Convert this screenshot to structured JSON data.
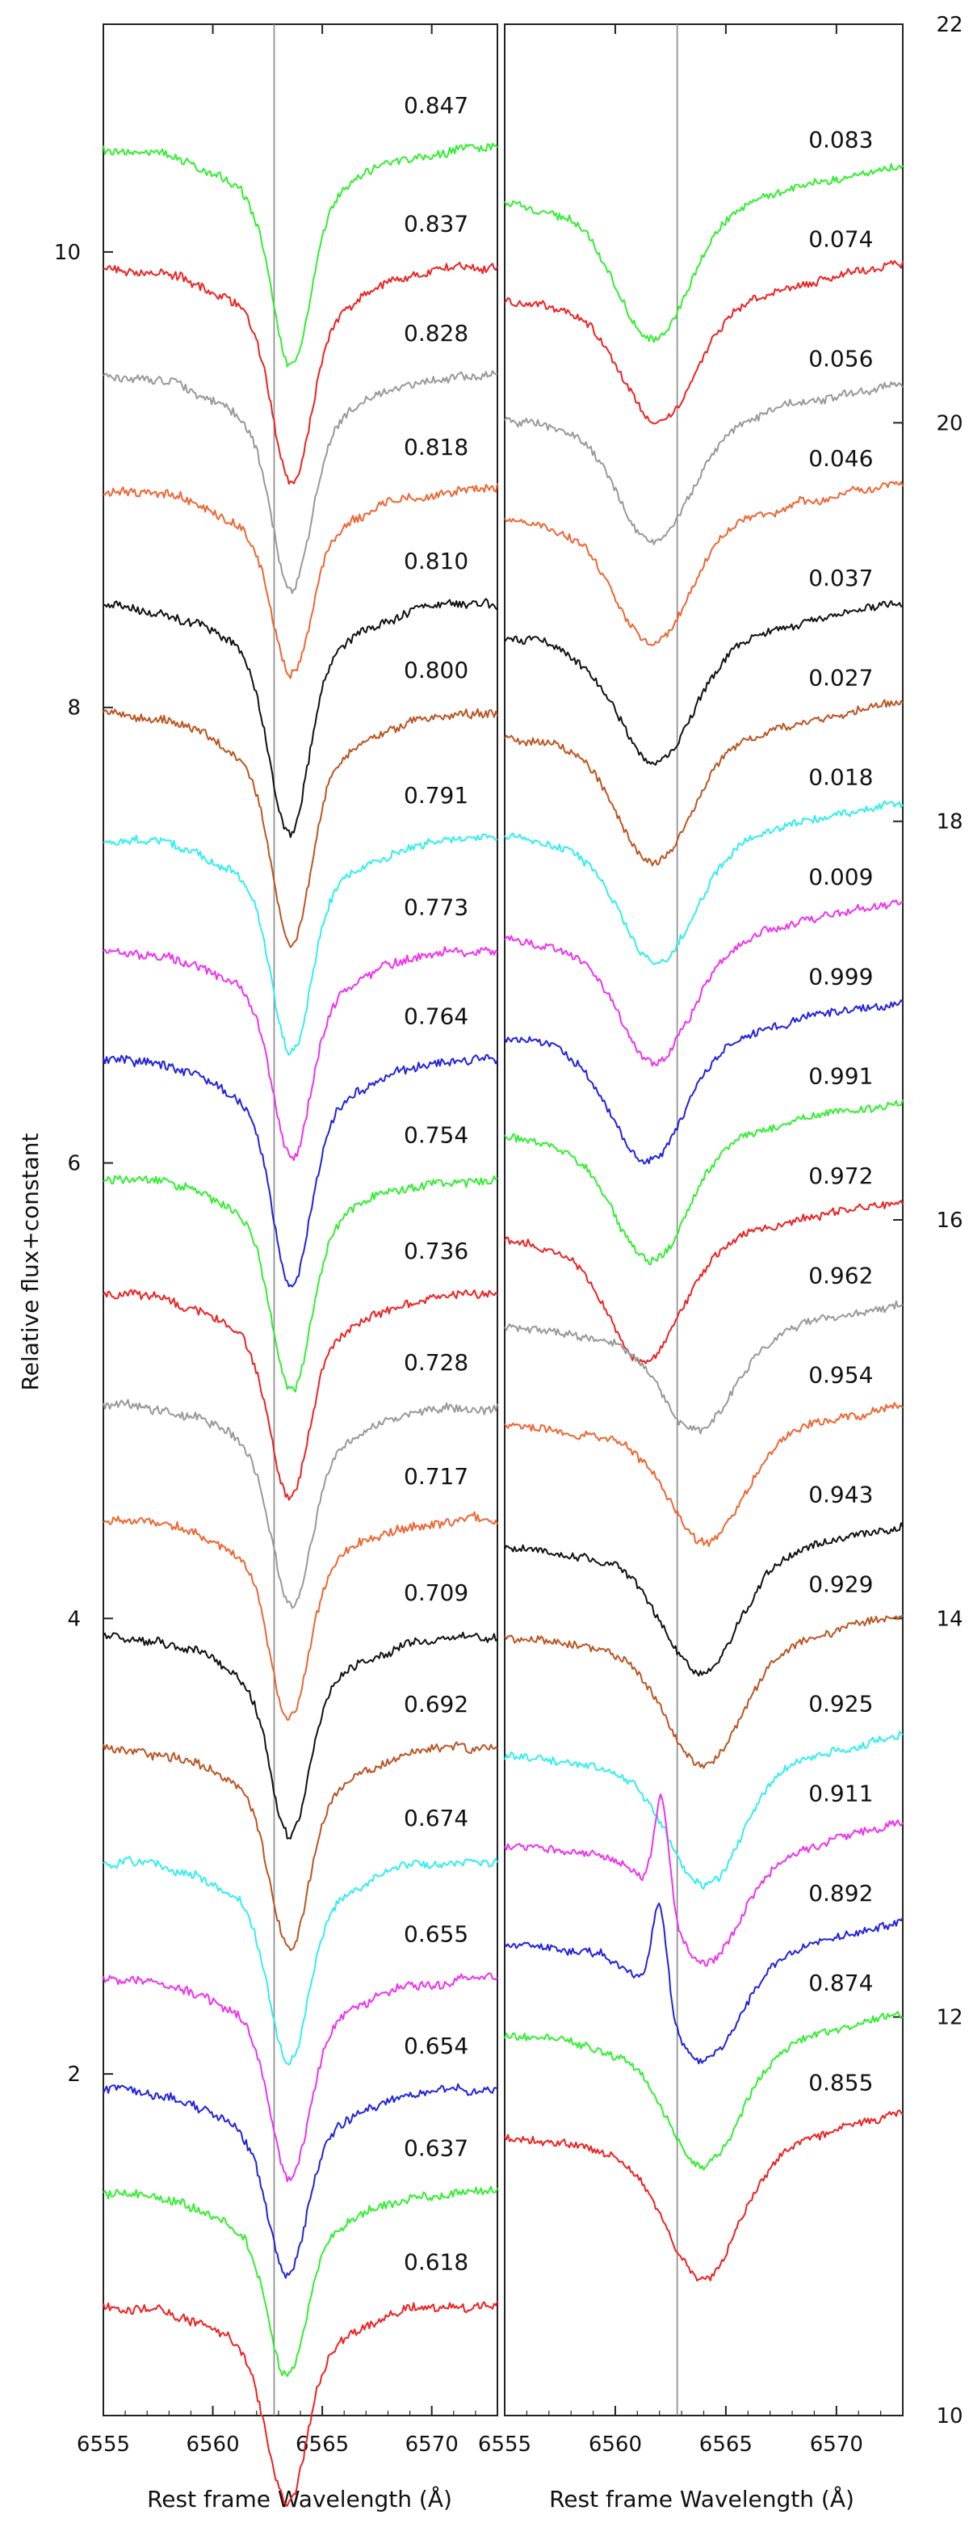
{
  "chart_data": [
    {
      "type": "line",
      "panel": "left",
      "xlabel": "Rest frame Wavelength (Å)",
      "ylabel": "Relative flux+constant",
      "xlim": [
        6555,
        6573
      ],
      "ylim": [
        0.5,
        11
      ],
      "xticks": [
        6555,
        6560,
        6565,
        6570
      ],
      "xtick_labels": [
        "6555",
        "6560",
        "6565",
        "6570"
      ],
      "yticks": [
        2,
        4,
        6,
        8,
        10
      ],
      "ytick_labels": [
        "2",
        "4",
        "6",
        "8",
        "10"
      ],
      "rest_line": 6562.8,
      "series": [
        {
          "phase": "0.847",
          "color": "#33ee33",
          "continuum": 10.45,
          "depth": 0.7,
          "center": 6563.6,
          "emission": 0
        },
        {
          "phase": "0.837",
          "color": "#ee2222",
          "continuum": 9.93,
          "depth": 0.7,
          "center": 6563.6,
          "emission": 0
        },
        {
          "phase": "0.828",
          "color": "#999999",
          "continuum": 9.45,
          "depth": 0.7,
          "center": 6563.6,
          "emission": 0
        },
        {
          "phase": "0.818",
          "color": "#ee6633",
          "continuum": 8.95,
          "depth": 0.6,
          "center": 6563.6,
          "emission": 0
        },
        {
          "phase": "0.810",
          "color": "#111111",
          "continuum": 8.45,
          "depth": 0.75,
          "center": 6563.5,
          "emission": 0
        },
        {
          "phase": "0.800",
          "color": "#bb5522",
          "continuum": 7.97,
          "depth": 0.75,
          "center": 6563.6,
          "emission": 0
        },
        {
          "phase": "0.791",
          "color": "#33eeee",
          "continuum": 7.42,
          "depth": 0.7,
          "center": 6563.6,
          "emission": 0
        },
        {
          "phase": "0.773",
          "color": "#ee33ee",
          "continuum": 6.93,
          "depth": 0.66,
          "center": 6563.6,
          "emission": 0
        },
        {
          "phase": "0.764",
          "color": "#2222dd",
          "continuum": 6.45,
          "depth": 0.73,
          "center": 6563.6,
          "emission": 0
        },
        {
          "phase": "0.754",
          "color": "#33ee33",
          "continuum": 5.93,
          "depth": 0.7,
          "center": 6563.6,
          "emission": 0
        },
        {
          "phase": "0.736",
          "color": "#ee2222",
          "continuum": 5.42,
          "depth": 0.66,
          "center": 6563.5,
          "emission": 0
        },
        {
          "phase": "0.728",
          "color": "#999999",
          "continuum": 4.93,
          "depth": 0.65,
          "center": 6563.6,
          "emission": 0
        },
        {
          "phase": "0.717",
          "color": "#ee6633",
          "continuum": 4.43,
          "depth": 0.65,
          "center": 6563.5,
          "emission": 0
        },
        {
          "phase": "0.709",
          "color": "#111111",
          "continuum": 3.92,
          "depth": 0.65,
          "center": 6563.5,
          "emission": 0
        },
        {
          "phase": "0.692",
          "color": "#bb5522",
          "continuum": 3.43,
          "depth": 0.65,
          "center": 6563.5,
          "emission": 0
        },
        {
          "phase": "0.674",
          "color": "#33eeee",
          "continuum": 2.93,
          "depth": 0.65,
          "center": 6563.5,
          "emission": 0
        },
        {
          "phase": "0.655",
          "color": "#ee33ee",
          "continuum": 2.42,
          "depth": 0.65,
          "center": 6563.5,
          "emission": 0
        },
        {
          "phase": "0.654",
          "color": "#2222dd",
          "continuum": 1.93,
          "depth": 0.6,
          "center": 6563.4,
          "emission": 0
        },
        {
          "phase": "0.637",
          "color": "#33ee33",
          "continuum": 1.48,
          "depth": 0.6,
          "center": 6563.4,
          "emission": 0
        },
        {
          "phase": "0.618",
          "color": "#ee2222",
          "continuum": 0.98,
          "depth": 0.65,
          "center": 6563.4,
          "emission": 0
        }
      ]
    },
    {
      "type": "line",
      "panel": "right",
      "xlabel": "Rest frame Wavelength (Å)",
      "xlim": [
        6555,
        6573
      ],
      "ylim": [
        10,
        22
      ],
      "xticks": [
        6555,
        6560,
        6565,
        6570
      ],
      "xtick_labels": [
        "6555",
        "6560",
        "6565",
        "6570"
      ],
      "yticks": [
        10,
        12,
        14,
        16,
        18,
        20,
        22
      ],
      "ytick_labels": [
        "10",
        "12",
        "14",
        "16",
        "18",
        "20",
        "22"
      ],
      "rest_line": 6562.8,
      "series": [
        {
          "phase": "0.083",
          "color": "#33ee33",
          "continuum": 21.2,
          "depth": 0.6,
          "center": 6561.7,
          "emission": 0
        },
        {
          "phase": "0.074",
          "color": "#ee2222",
          "continuum": 20.7,
          "depth": 0.55,
          "center": 6562.0,
          "emission": 0
        },
        {
          "phase": "0.056",
          "color": "#999999",
          "continuum": 20.1,
          "depth": 0.55,
          "center": 6561.8,
          "emission": 0
        },
        {
          "phase": "0.046",
          "color": "#ee6633",
          "continuum": 19.6,
          "depth": 0.55,
          "center": 6561.7,
          "emission": 0
        },
        {
          "phase": "0.037",
          "color": "#111111",
          "continuum": 19.0,
          "depth": 0.55,
          "center": 6561.8,
          "emission": 0
        },
        {
          "phase": "0.027",
          "color": "#bb5522",
          "continuum": 18.5,
          "depth": 0.55,
          "center": 6561.8,
          "emission": 0
        },
        {
          "phase": "0.018",
          "color": "#33eeee",
          "continuum": 18.0,
          "depth": 0.55,
          "center": 6561.9,
          "emission": 0
        },
        {
          "phase": "0.009",
          "color": "#ee33ee",
          "continuum": 17.5,
          "depth": 0.55,
          "center": 6561.8,
          "emission": 0
        },
        {
          "phase": "0.999",
          "color": "#2222dd",
          "continuum": 17.0,
          "depth": 0.55,
          "center": 6561.5,
          "emission": 0
        },
        {
          "phase": "0.991",
          "color": "#33ee33",
          "continuum": 16.5,
          "depth": 0.55,
          "center": 6561.6,
          "emission": 0
        },
        {
          "phase": "0.972",
          "color": "#ee2222",
          "continuum": 16.0,
          "depth": 0.55,
          "center": 6561.3,
          "emission": 0
        },
        {
          "phase": "0.962",
          "color": "#999999",
          "continuum": 15.5,
          "depth": 0.45,
          "center": 6563.7,
          "emission": 0
        },
        {
          "phase": "0.954",
          "color": "#ee6633",
          "continuum": 15.0,
          "depth": 0.5,
          "center": 6564.1,
          "emission": 0
        },
        {
          "phase": "0.943",
          "color": "#111111",
          "continuum": 14.4,
          "depth": 0.55,
          "center": 6563.9,
          "emission": 0
        },
        {
          "phase": "0.929",
          "color": "#bb5522",
          "continuum": 13.95,
          "depth": 0.55,
          "center": 6564.0,
          "emission": 0
        },
        {
          "phase": "0.925",
          "color": "#33eeee",
          "continuum": 13.35,
          "depth": 0.55,
          "center": 6564.1,
          "emission": 0
        },
        {
          "phase": "0.911",
          "color": "#ee33ee",
          "continuum": 12.9,
          "depth": 0.5,
          "center": 6564.1,
          "emission": 0.55
        },
        {
          "phase": "0.892",
          "color": "#2222dd",
          "continuum": 12.4,
          "depth": 0.5,
          "center": 6564.0,
          "emission": 0.5
        },
        {
          "phase": "0.874",
          "color": "#33ee33",
          "continuum": 11.95,
          "depth": 0.55,
          "center": 6564.0,
          "emission": 0
        },
        {
          "phase": "0.855",
          "color": "#ee2222",
          "continuum": 11.45,
          "depth": 0.6,
          "center": 6564.0,
          "emission": 0
        }
      ]
    }
  ]
}
